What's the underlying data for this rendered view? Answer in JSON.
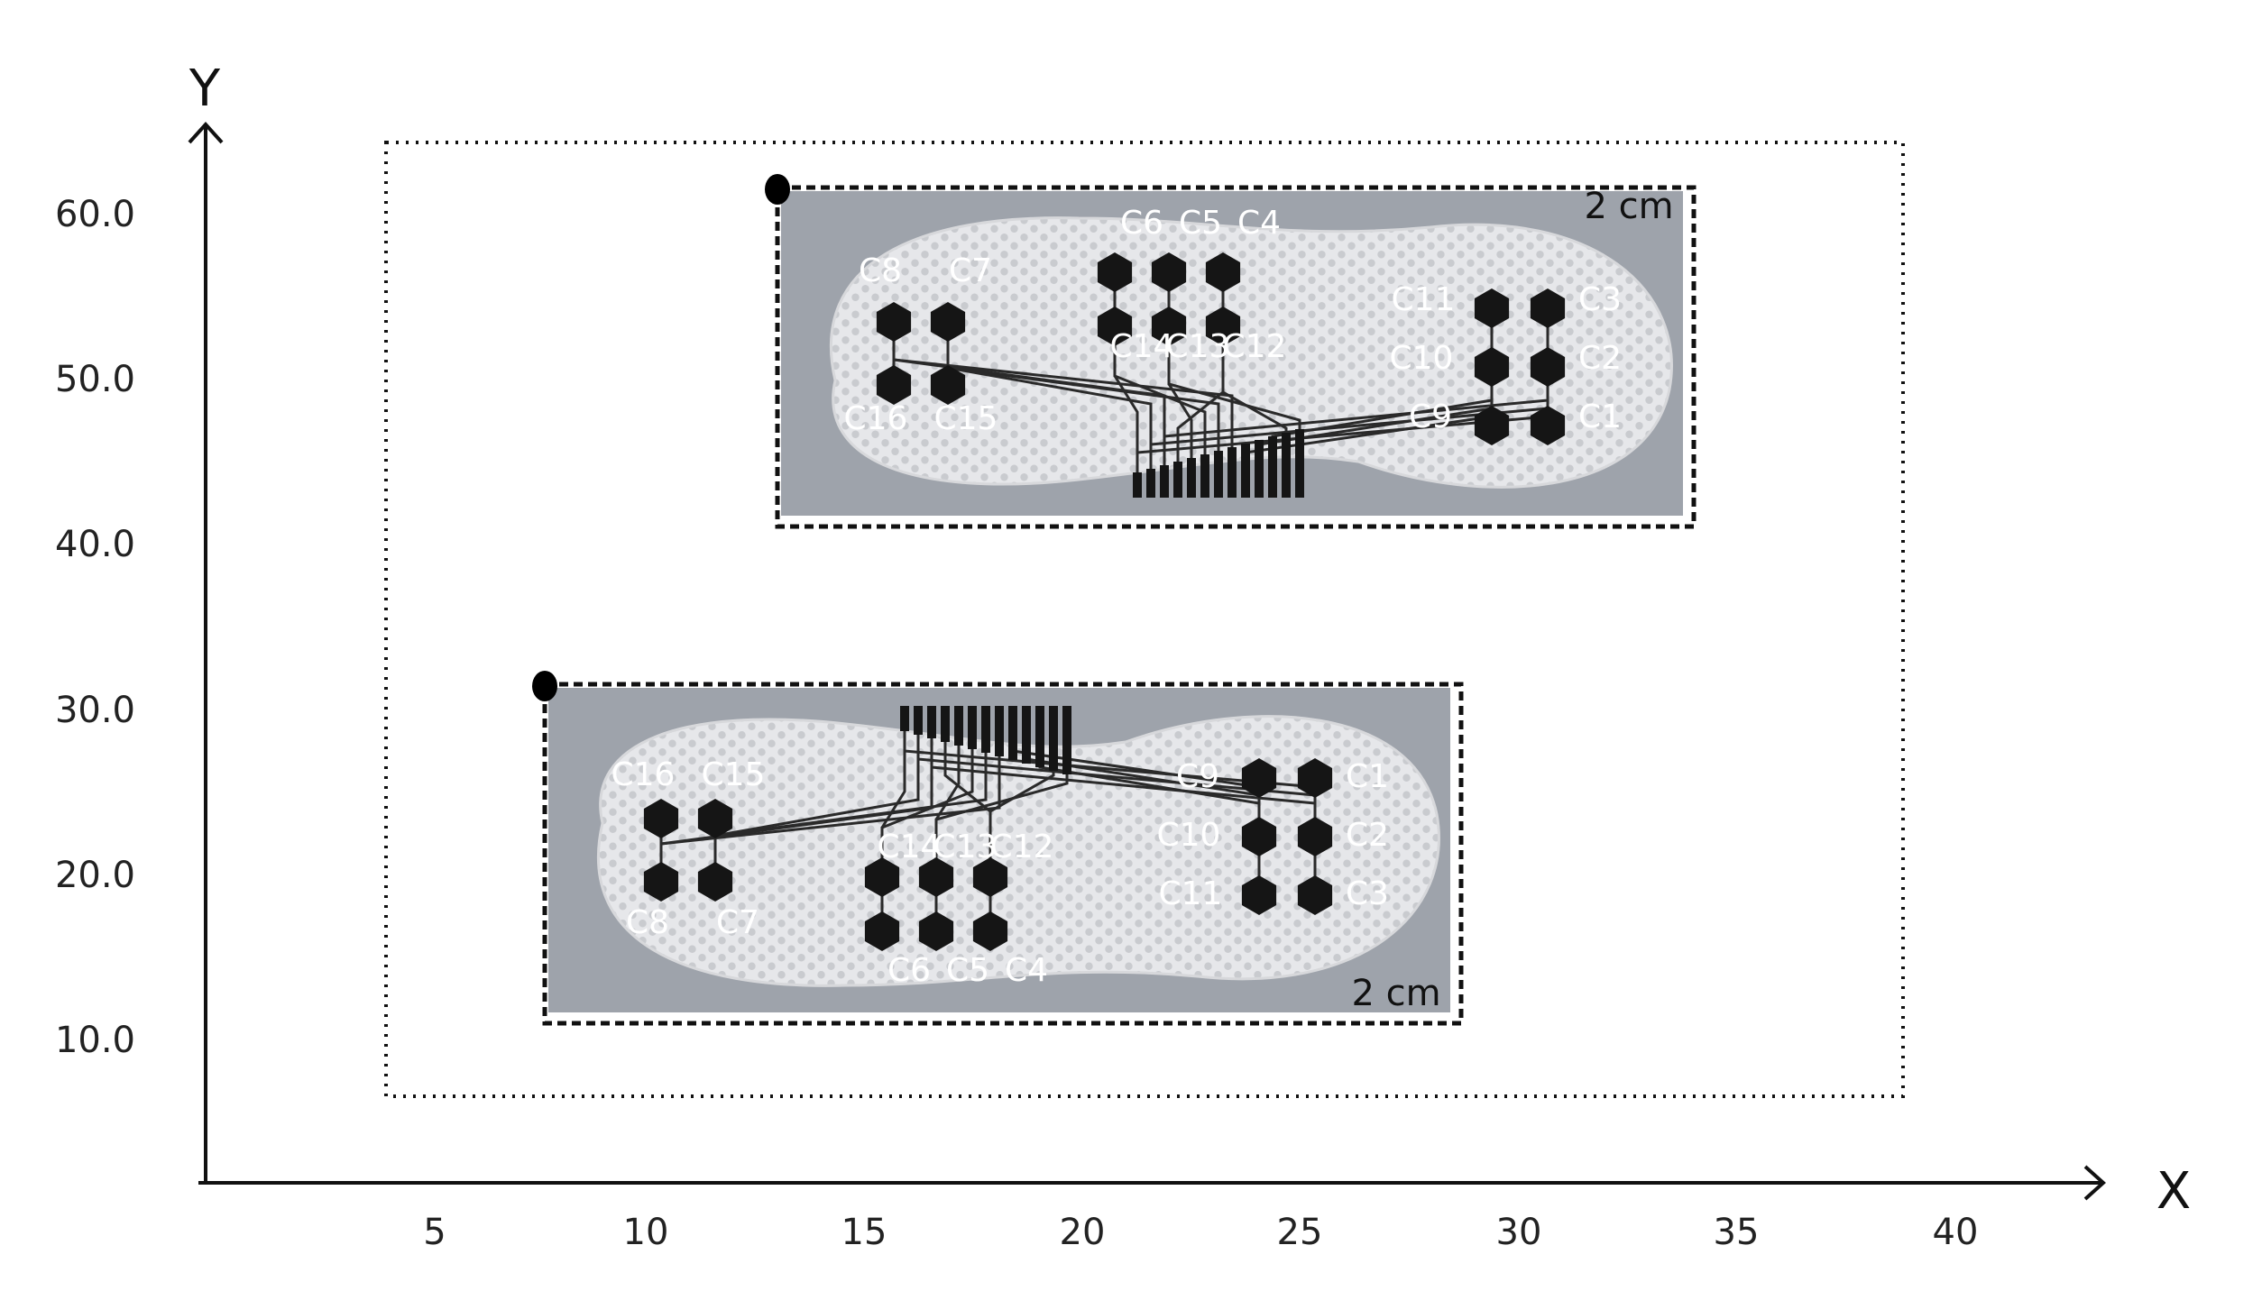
{
  "axes": {
    "x_title": "X",
    "y_title": "Y",
    "x_ticks": [
      "5",
      "10",
      "15",
      "20",
      "25",
      "30",
      "35",
      "40"
    ],
    "y_ticks": [
      "60.0",
      "50.0",
      "40.0",
      "30.0",
      "20.0",
      "10.0"
    ]
  },
  "colors": {
    "axis": "#111111",
    "pad": "#151515",
    "insole": "#e9eaec",
    "photo_bg": "#9ea3ab",
    "trace": "#2a2a2a",
    "marker": "#000000"
  },
  "insoles": [
    {
      "name": "top",
      "scale_label": "2 cm",
      "pads": [
        "C1",
        "C2",
        "C3",
        "C4",
        "C5",
        "C6",
        "C7",
        "C8",
        "C9",
        "C10",
        "C11",
        "C12",
        "C13",
        "C14",
        "C15",
        "C16"
      ]
    },
    {
      "name": "bottom",
      "scale_label": "2 cm",
      "pads": [
        "C1",
        "C2",
        "C3",
        "C4",
        "C5",
        "C6",
        "C7",
        "C8",
        "C9",
        "C10",
        "C11",
        "C12",
        "C13",
        "C14",
        "C15",
        "C16"
      ]
    }
  ]
}
